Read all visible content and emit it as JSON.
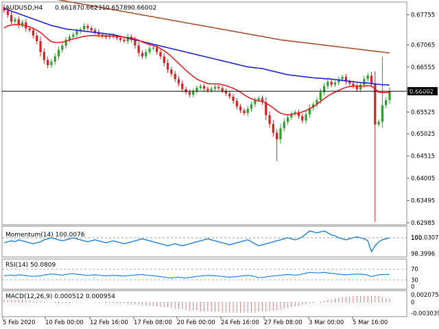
{
  "chart_data": [
    {
      "type": "candlestick",
      "symbol": "AUDUSD,H4",
      "ohlc_readout": [
        "0.66187",
        "0.66231",
        "0.65789",
        "0.66002"
      ],
      "current_price": "0.66002",
      "ylim": [
        0.62985,
        0.68
      ],
      "y_ticks": [
        "0.67755",
        "0.67065",
        "0.66555",
        "0.66040",
        "0.65525",
        "0.65025",
        "0.64515",
        "0.64005",
        "0.63495",
        "0.62985"
      ],
      "x_ticks": [
        "5 Feb 2020",
        "10 Feb 00:00",
        "12 Feb 16:00",
        "17 Feb 08:00",
        "20 Feb 00:00",
        "24 Feb 16:00",
        "27 Feb 08:00",
        "3 Mar 00:00",
        "5 Mar 16:00"
      ],
      "colors": {
        "bull": "#2e9c2e",
        "bear": "#d32020",
        "ema_fast": "#e02020",
        "sma_mid": "#1a22c8",
        "sma_slow": "#a0522d"
      },
      "close": [
        0.6785,
        0.6775,
        0.676,
        0.6765,
        0.6752,
        0.6758,
        0.6744,
        0.674,
        0.6728,
        0.6715,
        0.669,
        0.6672,
        0.666,
        0.6668,
        0.668,
        0.6695,
        0.6705,
        0.6718,
        0.6725,
        0.673,
        0.6738,
        0.6742,
        0.675,
        0.6745,
        0.674,
        0.6736,
        0.673,
        0.6726,
        0.6724,
        0.6728,
        0.6725,
        0.6722,
        0.6718,
        0.6715,
        0.6725,
        0.6718,
        0.6705,
        0.6688,
        0.668,
        0.669,
        0.6698,
        0.67,
        0.669,
        0.668,
        0.6665,
        0.665,
        0.664,
        0.6628,
        0.6618,
        0.6605,
        0.6598,
        0.6592,
        0.66,
        0.6608,
        0.6612,
        0.6606,
        0.6602,
        0.6606,
        0.661,
        0.6607,
        0.6601,
        0.6595,
        0.6588,
        0.6578,
        0.6565,
        0.6556,
        0.655,
        0.656,
        0.657,
        0.658,
        0.6584,
        0.6575,
        0.6545,
        0.6525,
        0.6505,
        0.649,
        0.6515,
        0.653,
        0.654,
        0.6548,
        0.6552,
        0.6543,
        0.6533,
        0.6547,
        0.6562,
        0.657,
        0.658,
        0.6598,
        0.6612,
        0.6622,
        0.6615,
        0.662,
        0.6628,
        0.6633,
        0.6622,
        0.6618,
        0.6612,
        0.6605,
        0.6615,
        0.6628,
        0.6636,
        0.6618,
        0.6524,
        0.653,
        0.6568,
        0.658,
        0.66
      ],
      "ema_fast": [
        0.6745,
        0.675,
        0.6752,
        0.6753,
        0.6753,
        0.6752,
        0.675,
        0.6748,
        0.6744,
        0.674,
        0.6735,
        0.6728,
        0.672,
        0.6714,
        0.6712,
        0.6712,
        0.6713,
        0.6715,
        0.6718,
        0.672,
        0.6722,
        0.6724,
        0.6726,
        0.6727,
        0.6728,
        0.6728,
        0.6727,
        0.6727,
        0.6727,
        0.6727,
        0.6727,
        0.6726,
        0.6725,
        0.6724,
        0.6723,
        0.6722,
        0.672,
        0.6717,
        0.6713,
        0.671,
        0.6707,
        0.6705,
        0.6702,
        0.6698,
        0.6693,
        0.6687,
        0.668,
        0.6672,
        0.6664,
        0.6656,
        0.6648,
        0.6641,
        0.6634,
        0.6628,
        0.6624,
        0.6621,
        0.6618,
        0.6617,
        0.6617,
        0.6617,
        0.6615,
        0.6613,
        0.661,
        0.6607,
        0.6603,
        0.6598,
        0.6592,
        0.6587,
        0.6583,
        0.658,
        0.6578,
        0.6577,
        0.6573,
        0.6568,
        0.6562,
        0.6555,
        0.655,
        0.6547,
        0.6546,
        0.6547,
        0.6549,
        0.655,
        0.6553,
        0.6556,
        0.656,
        0.6565,
        0.657,
        0.6577,
        0.6583,
        0.6589,
        0.6594,
        0.6598,
        0.6602,
        0.6606,
        0.6609,
        0.6611,
        0.6612,
        0.6612,
        0.6612,
        0.6612,
        0.6613,
        0.6612,
        0.6605,
        0.6598,
        0.6597,
        0.6597,
        0.6598
      ],
      "sma_mid": [
        0.679,
        0.6787,
        0.6784,
        0.6781,
        0.6778,
        0.6775,
        0.6772,
        0.6769,
        0.6766,
        0.6763,
        0.676,
        0.6757,
        0.6754,
        0.6751,
        0.6749,
        0.6747,
        0.6745,
        0.6743,
        0.6742,
        0.6741,
        0.674,
        0.6739,
        0.6738,
        0.6737,
        0.6736,
        0.6735,
        0.6734,
        0.6733,
        0.6732,
        0.6731,
        0.673,
        0.6728,
        0.6726,
        0.6724,
        0.6722,
        0.672,
        0.6718,
        0.6716,
        0.6714,
        0.6712,
        0.671,
        0.6708,
        0.6706,
        0.6704,
        0.6702,
        0.67,
        0.6698,
        0.6696,
        0.6694,
        0.6692,
        0.669,
        0.6688,
        0.6686,
        0.6684,
        0.6682,
        0.668,
        0.6678,
        0.6676,
        0.6674,
        0.6672,
        0.667,
        0.6668,
        0.6666,
        0.6664,
        0.6662,
        0.666,
        0.6658,
        0.6656,
        0.6655,
        0.6654,
        0.6653,
        0.6652,
        0.665,
        0.6648,
        0.6646,
        0.6644,
        0.6642,
        0.664,
        0.6638,
        0.6637,
        0.6636,
        0.6635,
        0.6634,
        0.6633,
        0.6632,
        0.6631,
        0.663,
        0.663,
        0.6629,
        0.6629,
        0.6628,
        0.6627,
        0.6626,
        0.6625,
        0.6624,
        0.6623,
        0.6622,
        0.6621,
        0.662,
        0.6619,
        0.6619,
        0.6618,
        0.6617,
        0.6616,
        0.6615,
        0.6615,
        0.6614
      ],
      "sma_slow": [
        0.6832,
        0.683,
        0.6829,
        0.6828,
        0.6826,
        0.6825,
        0.6823,
        0.6822,
        0.682,
        0.6819,
        0.6817,
        0.6816,
        0.6814,
        0.6813,
        0.6811,
        0.681,
        0.6808,
        0.6807,
        0.6805,
        0.6804,
        0.6802,
        0.6801,
        0.6799,
        0.6798,
        0.6796,
        0.6795,
        0.6793,
        0.6792,
        0.679,
        0.6789,
        0.6787,
        0.6786,
        0.6784,
        0.6783,
        0.6781,
        0.678,
        0.6778,
        0.6777,
        0.6775,
        0.6774,
        0.6772,
        0.6771,
        0.6769,
        0.6768,
        0.6766,
        0.6765,
        0.6763,
        0.6762,
        0.676,
        0.6759,
        0.6757,
        0.6756,
        0.6754,
        0.6753,
        0.6751,
        0.675,
        0.6748,
        0.6747,
        0.6745,
        0.6744,
        0.6742,
        0.6741,
        0.6739,
        0.6738,
        0.6736,
        0.6735,
        0.6733,
        0.6732,
        0.673,
        0.6729,
        0.6727,
        0.6726,
        0.6724,
        0.6723,
        0.6721,
        0.672,
        0.6718,
        0.6717,
        0.6716,
        0.6715,
        0.6714,
        0.6713,
        0.6712,
        0.6711,
        0.671,
        0.6709,
        0.6708,
        0.6707,
        0.6706,
        0.6705,
        0.6704,
        0.6703,
        0.6702,
        0.6701,
        0.67,
        0.6699,
        0.6698,
        0.6697,
        0.6696,
        0.6695,
        0.6694,
        0.6693,
        0.6692,
        0.6691,
        0.669,
        0.6689,
        0.6688
      ]
    },
    {
      "type": "line",
      "label": "Momentum(14) 100.0076",
      "y_ticks": [
        "100.0307",
        "100",
        "98.3996"
      ],
      "ylim": [
        98.2,
        100.9
      ],
      "color": "#1e7fd8",
      "values": [
        99.5,
        99.6,
        99.7,
        99.6,
        99.8,
        99.7,
        99.6,
        99.5,
        99.4,
        99.5,
        99.6,
        99.8,
        99.9,
        100.0,
        99.9,
        99.8,
        99.7,
        99.8,
        99.9,
        100.0,
        99.9,
        99.8,
        99.7,
        99.6,
        99.7,
        99.8,
        99.7,
        99.6,
        99.5,
        99.6,
        99.7,
        99.6,
        99.5,
        99.4,
        99.5,
        99.6,
        99.7,
        99.8,
        99.9,
        99.8,
        99.7,
        99.6,
        99.5,
        99.4,
        99.3,
        99.2,
        99.3,
        99.4,
        99.3,
        99.2,
        99.3,
        99.4,
        99.5,
        99.6,
        99.7,
        99.8,
        99.9,
        99.8,
        99.7,
        99.6,
        99.5,
        99.4,
        99.3,
        99.4,
        99.5,
        99.6,
        99.7,
        99.8,
        99.6,
        99.4,
        99.2,
        99.3,
        99.4,
        99.5,
        99.6,
        99.7,
        99.8,
        99.9,
        100.0,
        99.9,
        99.8,
        99.9,
        100.1,
        100.4,
        100.7,
        100.6,
        100.5,
        100.6,
        100.7,
        100.5,
        100.3,
        100.2,
        100.0,
        99.9,
        99.8,
        99.9,
        100.0,
        100.1,
        100.0,
        99.9,
        99.7,
        98.6,
        99.2,
        99.6,
        99.8,
        99.9,
        100.0
      ]
    },
    {
      "type": "line",
      "label": "RSI(14) 50.0809",
      "y_ticks": [
        "70",
        "30",
        "0"
      ],
      "ylim": [
        0,
        100
      ],
      "color": "#1e7fd8",
      "values": [
        45,
        47,
        48,
        46,
        49,
        48,
        46,
        44,
        43,
        44,
        45,
        48,
        50,
        52,
        51,
        49,
        48,
        50,
        52,
        53,
        51,
        50,
        48,
        47,
        48,
        49,
        48,
        46,
        45,
        46,
        47,
        46,
        45,
        44,
        45,
        47,
        48,
        49,
        50,
        48,
        47,
        45,
        44,
        42,
        40,
        38,
        37,
        39,
        40,
        38,
        37,
        39,
        41,
        43,
        44,
        46,
        47,
        46,
        45,
        44,
        43,
        41,
        40,
        41,
        42,
        44,
        45,
        47,
        45,
        42,
        38,
        39,
        41,
        43,
        44,
        46,
        47,
        49,
        50,
        49,
        48,
        49,
        52,
        55,
        58,
        57,
        56,
        57,
        58,
        56,
        54,
        53,
        51,
        50,
        49,
        50,
        51,
        52,
        51,
        50,
        48,
        42,
        46,
        49,
        50,
        50,
        50
      ]
    },
    {
      "type": "bar",
      "label": "MACD(12,26,9) 0.000512 0.000954",
      "y_ticks": [
        "0.002075",
        "0",
        "-0.003039"
      ],
      "ylim": [
        -0.0036,
        0.0026
      ],
      "color": "#c00000",
      "values": [
        0.0008,
        0.0008,
        0.0007,
        0.0007,
        0.0006,
        0.0006,
        0.0005,
        0.0005,
        0.0004,
        0.0003,
        0.0002,
        0.0001,
        0.0,
        -0.0001,
        -0.0002,
        -0.0002,
        -0.0002,
        -0.0002,
        -0.0002,
        -0.0001,
        -0.0001,
        -0.0001,
        0.0,
        0.0,
        0.0,
        -0.0001,
        -0.0001,
        -0.0001,
        -0.0002,
        -0.0002,
        -0.0003,
        -0.0003,
        -0.0004,
        -0.0004,
        -0.0005,
        -0.0005,
        -0.0006,
        -0.0007,
        -0.0008,
        -0.0009,
        -0.001,
        -0.0011,
        -0.0012,
        -0.0013,
        -0.0014,
        -0.0015,
        -0.0016,
        -0.0017,
        -0.0018,
        -0.0019,
        -0.002,
        -0.0021,
        -0.0022,
        -0.0023,
        -0.0024,
        -0.0025,
        -0.0026,
        -0.0026,
        -0.0027,
        -0.0027,
        -0.0028,
        -0.0028,
        -0.0028,
        -0.0029,
        -0.0029,
        -0.0029,
        -0.0029,
        -0.0029,
        -0.0028,
        -0.0028,
        -0.0027,
        -0.0026,
        -0.0025,
        -0.0024,
        -0.0023,
        -0.0022,
        -0.002,
        -0.0018,
        -0.0016,
        -0.0014,
        -0.0012,
        -0.001,
        -0.0008,
        -0.0006,
        -0.0004,
        -0.0002,
        0.0,
        0.0002,
        0.0004,
        0.0006,
        0.0008,
        0.001,
        0.0012,
        0.0014,
        0.0015,
        0.0016,
        0.0017,
        0.0018,
        0.0018,
        0.0019,
        0.0019,
        0.0019,
        0.0018,
        0.0017,
        0.0015,
        0.0012,
        0.001
      ]
    }
  ]
}
